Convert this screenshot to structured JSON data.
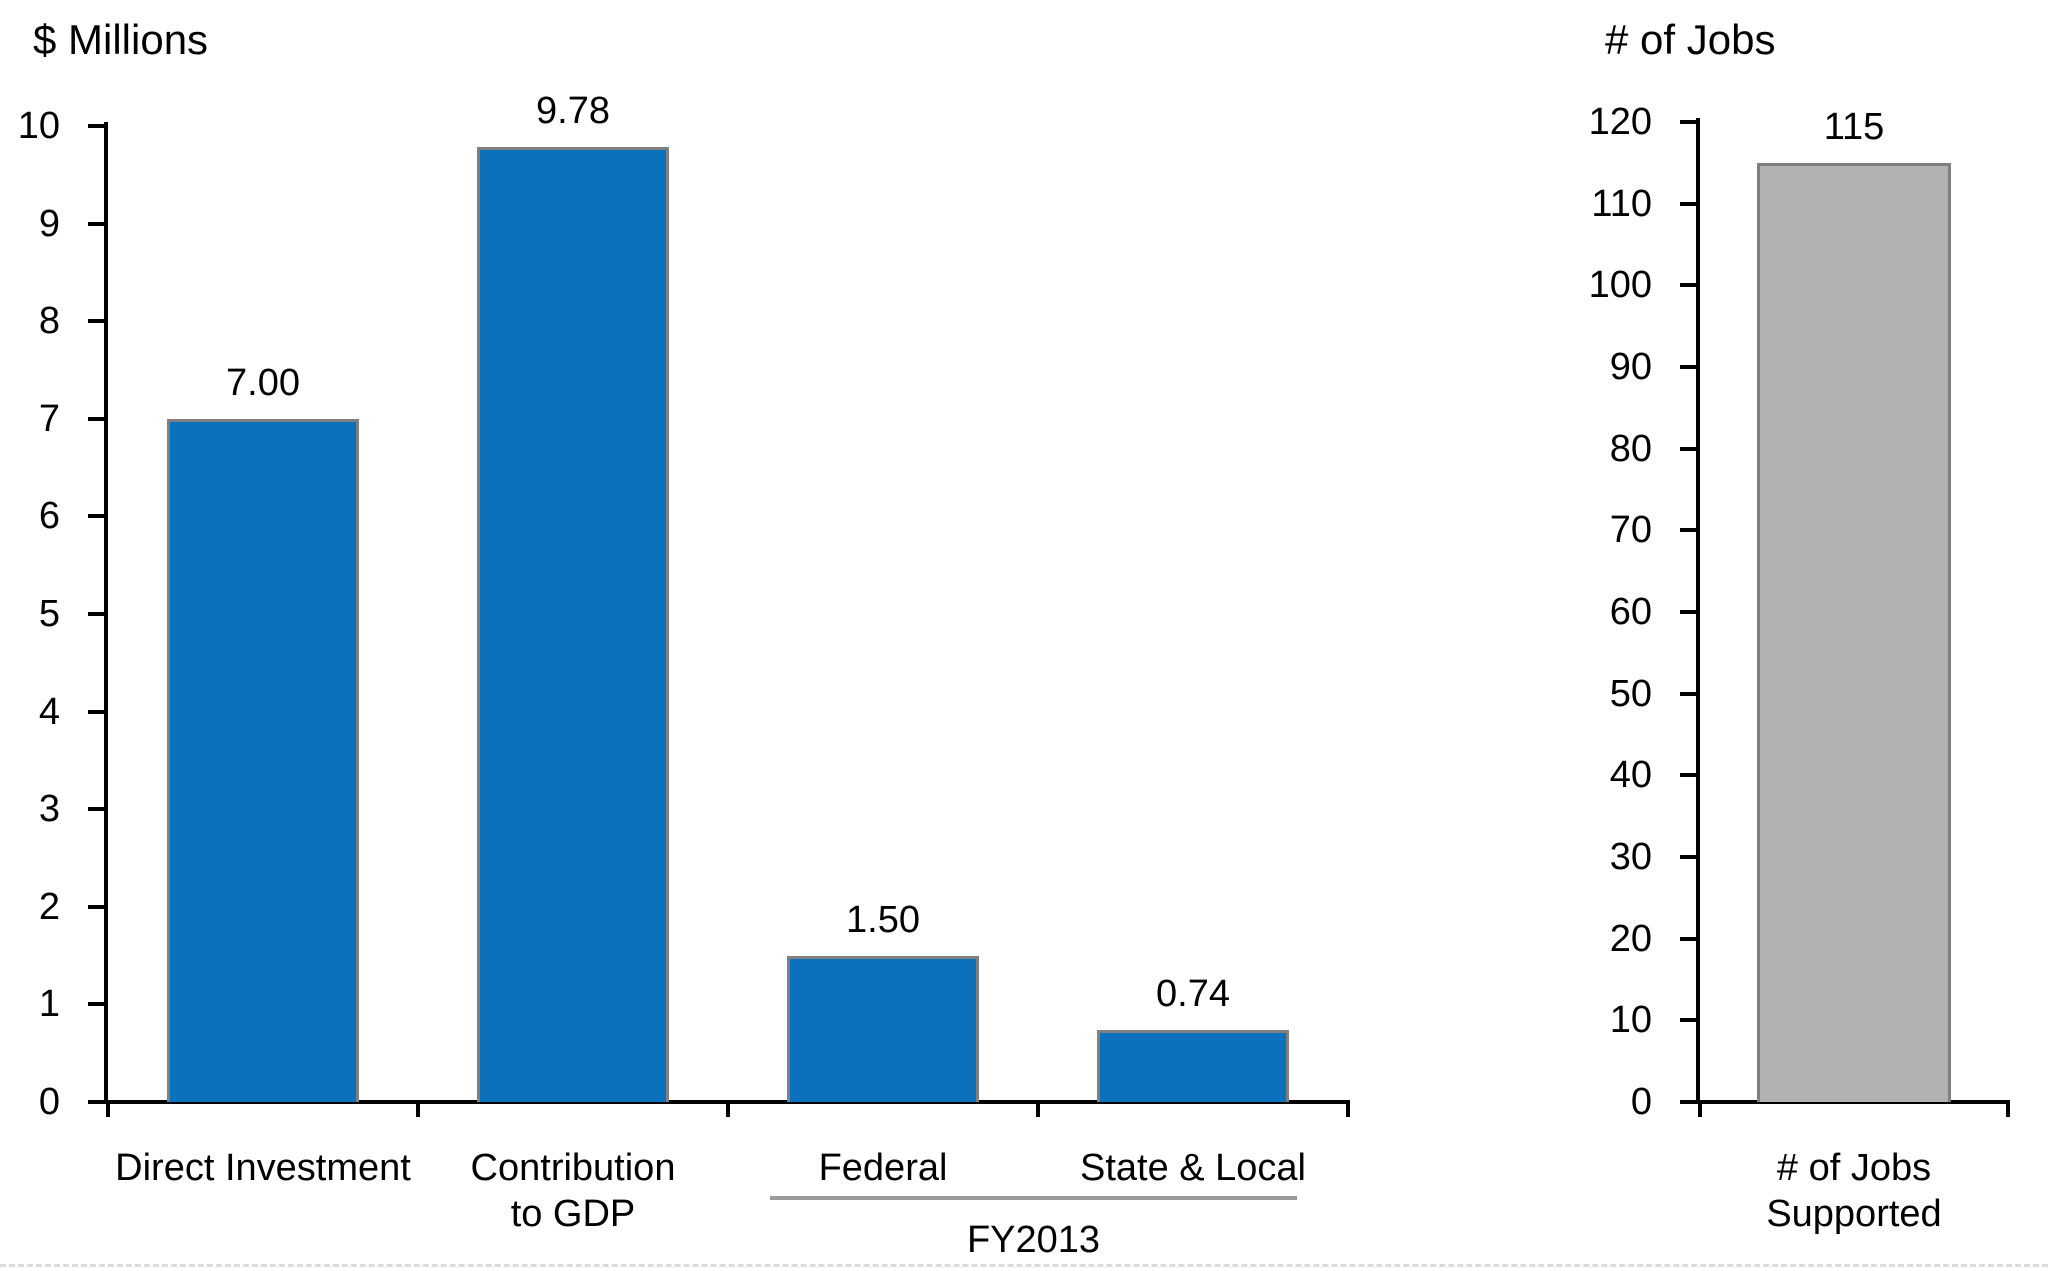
{
  "figure": {
    "background": "#ffffff",
    "axis_color": "#000000",
    "text_color": "#000000",
    "bottom_artifact_color": "#c8c8c8"
  },
  "chart_data": [
    {
      "type": "bar",
      "title": "$ Millions",
      "categories": [
        "Direct Investment",
        "Contribution\nto GDP",
        "Federal",
        "State & Local"
      ],
      "values": [
        7.0,
        9.78,
        1.5,
        0.74
      ],
      "value_labels": [
        "7.00",
        "9.78",
        "1.50",
        "0.74"
      ],
      "ylim": [
        0,
        10
      ],
      "ytick_step": 1,
      "ytick_labels": [
        "0",
        "1",
        "2",
        "3",
        "4",
        "5",
        "6",
        "7",
        "8",
        "9",
        "10"
      ],
      "xlabel": "",
      "ylabel": "",
      "grid": false,
      "legend": null,
      "bar_fill": "#0b71bd",
      "bar_border": "#7f7f7f",
      "group_annotation": {
        "label": "FY2013",
        "categories": [
          "Federal",
          "State & Local"
        ],
        "line_color": "#9a9a9a"
      }
    },
    {
      "type": "bar",
      "title": "# of Jobs",
      "categories": [
        "# of Jobs\nSupported"
      ],
      "values": [
        115
      ],
      "value_labels": [
        "115"
      ],
      "ylim": [
        0,
        120
      ],
      "ytick_step": 10,
      "ytick_labels": [
        "0",
        "10",
        "20",
        "30",
        "40",
        "50",
        "60",
        "70",
        "80",
        "90",
        "100",
        "110",
        "120"
      ],
      "xlabel": "",
      "ylabel": "",
      "grid": false,
      "legend": null,
      "bar_fill": "#b2b2b2",
      "bar_border": "#7f7f7f"
    }
  ]
}
